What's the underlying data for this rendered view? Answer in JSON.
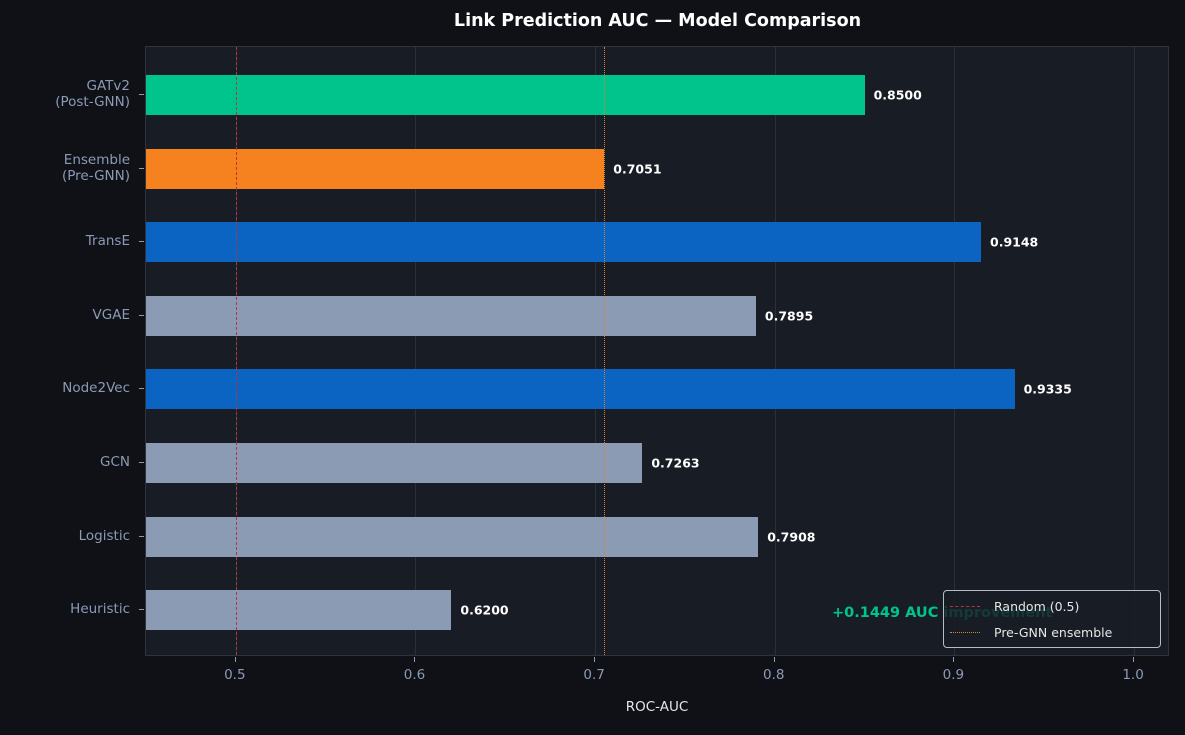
{
  "chart_data": {
    "type": "bar",
    "orientation": "horizontal",
    "title": "Link Prediction AUC — Model Comparison",
    "xlabel": "ROC-AUC",
    "ylabel": "",
    "xlim": [
      0.45,
      1.02
    ],
    "xticks": [
      "0.5",
      "0.6",
      "0.7",
      "0.8",
      "0.9",
      "1.0"
    ],
    "grid": "vertical",
    "categories": [
      "GATv2\n(Post-GNN)",
      "Ensemble\n(Pre-GNN)",
      "TransE",
      "VGAE",
      "Node2Vec",
      "GCN",
      "Logistic",
      "Heuristic"
    ],
    "values": [
      0.85,
      0.7051,
      0.9148,
      0.7895,
      0.9335,
      0.7263,
      0.7908,
      0.62
    ],
    "value_labels": [
      "0.8500",
      "0.7051",
      "0.9148",
      "0.7895",
      "0.9335",
      "0.7263",
      "0.7908",
      "0.6200"
    ],
    "bar_colors": [
      "#00c48c",
      "#f5821f",
      "#0c64c2",
      "#8b9bb4",
      "#0c64c2",
      "#8b9bb4",
      "#8b9bb4",
      "#8b9bb4"
    ],
    "reference_lines": [
      {
        "label": "Random (0.5)",
        "x": 0.5,
        "style": "dashed",
        "color": "#b5363a"
      },
      {
        "label": "Pre-GNN ensemble",
        "x": 0.7051,
        "style": "dotted",
        "color": "#d9822b"
      }
    ],
    "annotations": [
      {
        "text": "+0.1449 AUC improvement",
        "color": "#00c48c"
      }
    ],
    "legend": {
      "position": "lower right",
      "entries": [
        "Random (0.5)",
        "Pre-GNN ensemble"
      ]
    }
  }
}
